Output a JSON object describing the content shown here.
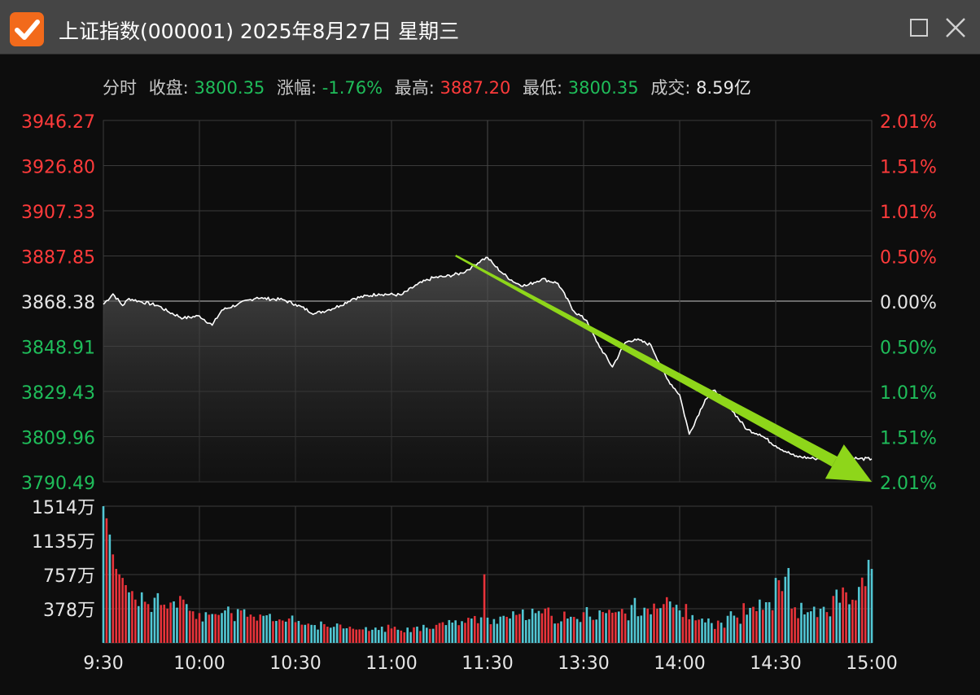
{
  "window": {
    "title": "上证指数(000001) 2025年8月27日 星期三"
  },
  "info": {
    "mode_label": "分时",
    "close_label": "收盘:",
    "close_value": "3800.35",
    "change_label": "涨幅:",
    "change_value": "-1.76%",
    "high_label": "最高:",
    "high_value": "3887.20",
    "low_label": "最低:",
    "low_value": "3800.35",
    "volume_label": "成交:",
    "volume_value": "8.59亿"
  },
  "colors": {
    "up": "#ff3b3b",
    "down": "#1fbd5a",
    "price_line": "#ffffff",
    "arrow": "#8ed61a",
    "volume_up": "#e8333a",
    "volume_down": "#52c7d4",
    "grid": "#3a3a3a"
  },
  "icons": {
    "app": "orange-check-icon",
    "maximize": "square-maximize-icon",
    "close": "x-close-icon"
  },
  "chart_data": {
    "type": "line",
    "prev_close": 3868.38,
    "price_axis_labels": [
      "3946.27",
      "3926.80",
      "3907.33",
      "3887.85",
      "3868.38",
      "3848.91",
      "3829.43",
      "3809.96",
      "3790.49"
    ],
    "percent_axis_labels": [
      "2.01%",
      "1.51%",
      "1.01%",
      "0.50%",
      "0.00%",
      "0.50%",
      "1.01%",
      "1.51%",
      "2.01%"
    ],
    "ylim": [
      3790.49,
      3946.27
    ],
    "x_labels": [
      "9:30",
      "10:00",
      "10:30",
      "11:00",
      "11:30",
      "13:30",
      "14:00",
      "14:30",
      "15:00"
    ],
    "price_series": {
      "x_minutes": [
        0,
        3,
        6,
        8,
        12,
        17,
        20,
        25,
        30,
        34,
        37,
        42,
        48,
        50,
        56,
        60,
        66,
        70,
        74,
        78,
        86,
        93,
        98,
        103,
        107,
        112,
        115,
        118,
        120,
        122,
        125,
        129,
        132,
        137,
        142,
        147,
        151,
        154,
        159,
        163,
        166,
        171,
        176,
        180,
        183,
        188,
        191,
        196,
        201,
        205,
        210,
        216,
        222,
        229,
        234,
        236,
        240
      ],
      "values": [
        3867.0,
        3871.5,
        3866.5,
        3869.5,
        3868.0,
        3866.5,
        3864.0,
        3861.0,
        3862.0,
        3858.0,
        3864.5,
        3867.0,
        3870.0,
        3869.5,
        3869.0,
        3867.0,
        3863.0,
        3864.5,
        3866.5,
        3869.5,
        3871.5,
        3871.0,
        3875.5,
        3878.5,
        3879.0,
        3880.5,
        3883.0,
        3886.0,
        3887.2,
        3884.0,
        3880.0,
        3876.0,
        3875.0,
        3878.0,
        3876.0,
        3864.0,
        3860.0,
        3851.0,
        3840.0,
        3850.5,
        3852.0,
        3849.5,
        3835.0,
        3828.0,
        3811.0,
        3826.0,
        3830.0,
        3822.0,
        3813.0,
        3811.0,
        3806.0,
        3801.5,
        3800.5,
        3801.0,
        3801.0,
        3800.35,
        3800.35
      ]
    },
    "volume_axis_labels": [
      "1514万",
      "1135万",
      "757万",
      "378万"
    ],
    "volume_max": 1514,
    "volume_series": {
      "x_minutes": [
        0,
        1,
        2,
        3,
        4,
        5,
        6,
        7,
        8,
        10,
        12,
        14,
        16,
        18,
        20,
        22,
        24,
        26,
        28,
        30,
        32,
        34,
        36,
        38,
        40,
        45,
        50,
        55,
        60,
        65,
        70,
        75,
        80,
        85,
        90,
        95,
        100,
        105,
        110,
        115,
        119,
        120,
        125,
        130,
        135,
        140,
        145,
        150,
        155,
        160,
        165,
        170,
        175,
        180,
        185,
        190,
        195,
        200,
        205,
        210,
        215,
        220,
        225,
        228,
        232,
        236,
        239
      ],
      "values": [
        1514,
        1380,
        1200,
        980,
        820,
        760,
        720,
        640,
        560,
        480,
        560,
        430,
        500,
        420,
        380,
        460,
        520,
        430,
        350,
        330,
        340,
        320,
        310,
        360,
        330,
        290,
        300,
        260,
        230,
        200,
        180,
        160,
        150,
        170,
        160,
        170,
        200,
        220,
        250,
        270,
        760,
        280,
        300,
        320,
        330,
        300,
        270,
        340,
        360,
        340,
        420,
        380,
        430,
        360,
        250,
        220,
        300,
        440,
        480,
        720,
        380,
        340,
        400,
        520,
        560,
        620,
        920
      ],
      "directions": [
        "d",
        "u",
        "d",
        "u",
        "u",
        "u",
        "u",
        "u",
        "d",
        "u",
        "d",
        "u",
        "d",
        "u",
        "u",
        "d",
        "u",
        "d",
        "u",
        "u",
        "d",
        "d",
        "u",
        "d",
        "u",
        "u",
        "d",
        "u",
        "u",
        "d",
        "u",
        "d",
        "u",
        "d",
        "u",
        "d",
        "d",
        "u",
        "d",
        "d",
        "u",
        "d",
        "d",
        "u",
        "d",
        "u",
        "d",
        "u",
        "d",
        "u",
        "d",
        "u",
        "u",
        "d",
        "u",
        "d",
        "d",
        "u",
        "d",
        "d",
        "u",
        "d",
        "d",
        "u",
        "u",
        "d",
        "d"
      ]
    },
    "trend_arrow": {
      "from_minute": 110,
      "from_value": 3888.0,
      "to_minute": 240,
      "to_value": 3790.49
    }
  }
}
